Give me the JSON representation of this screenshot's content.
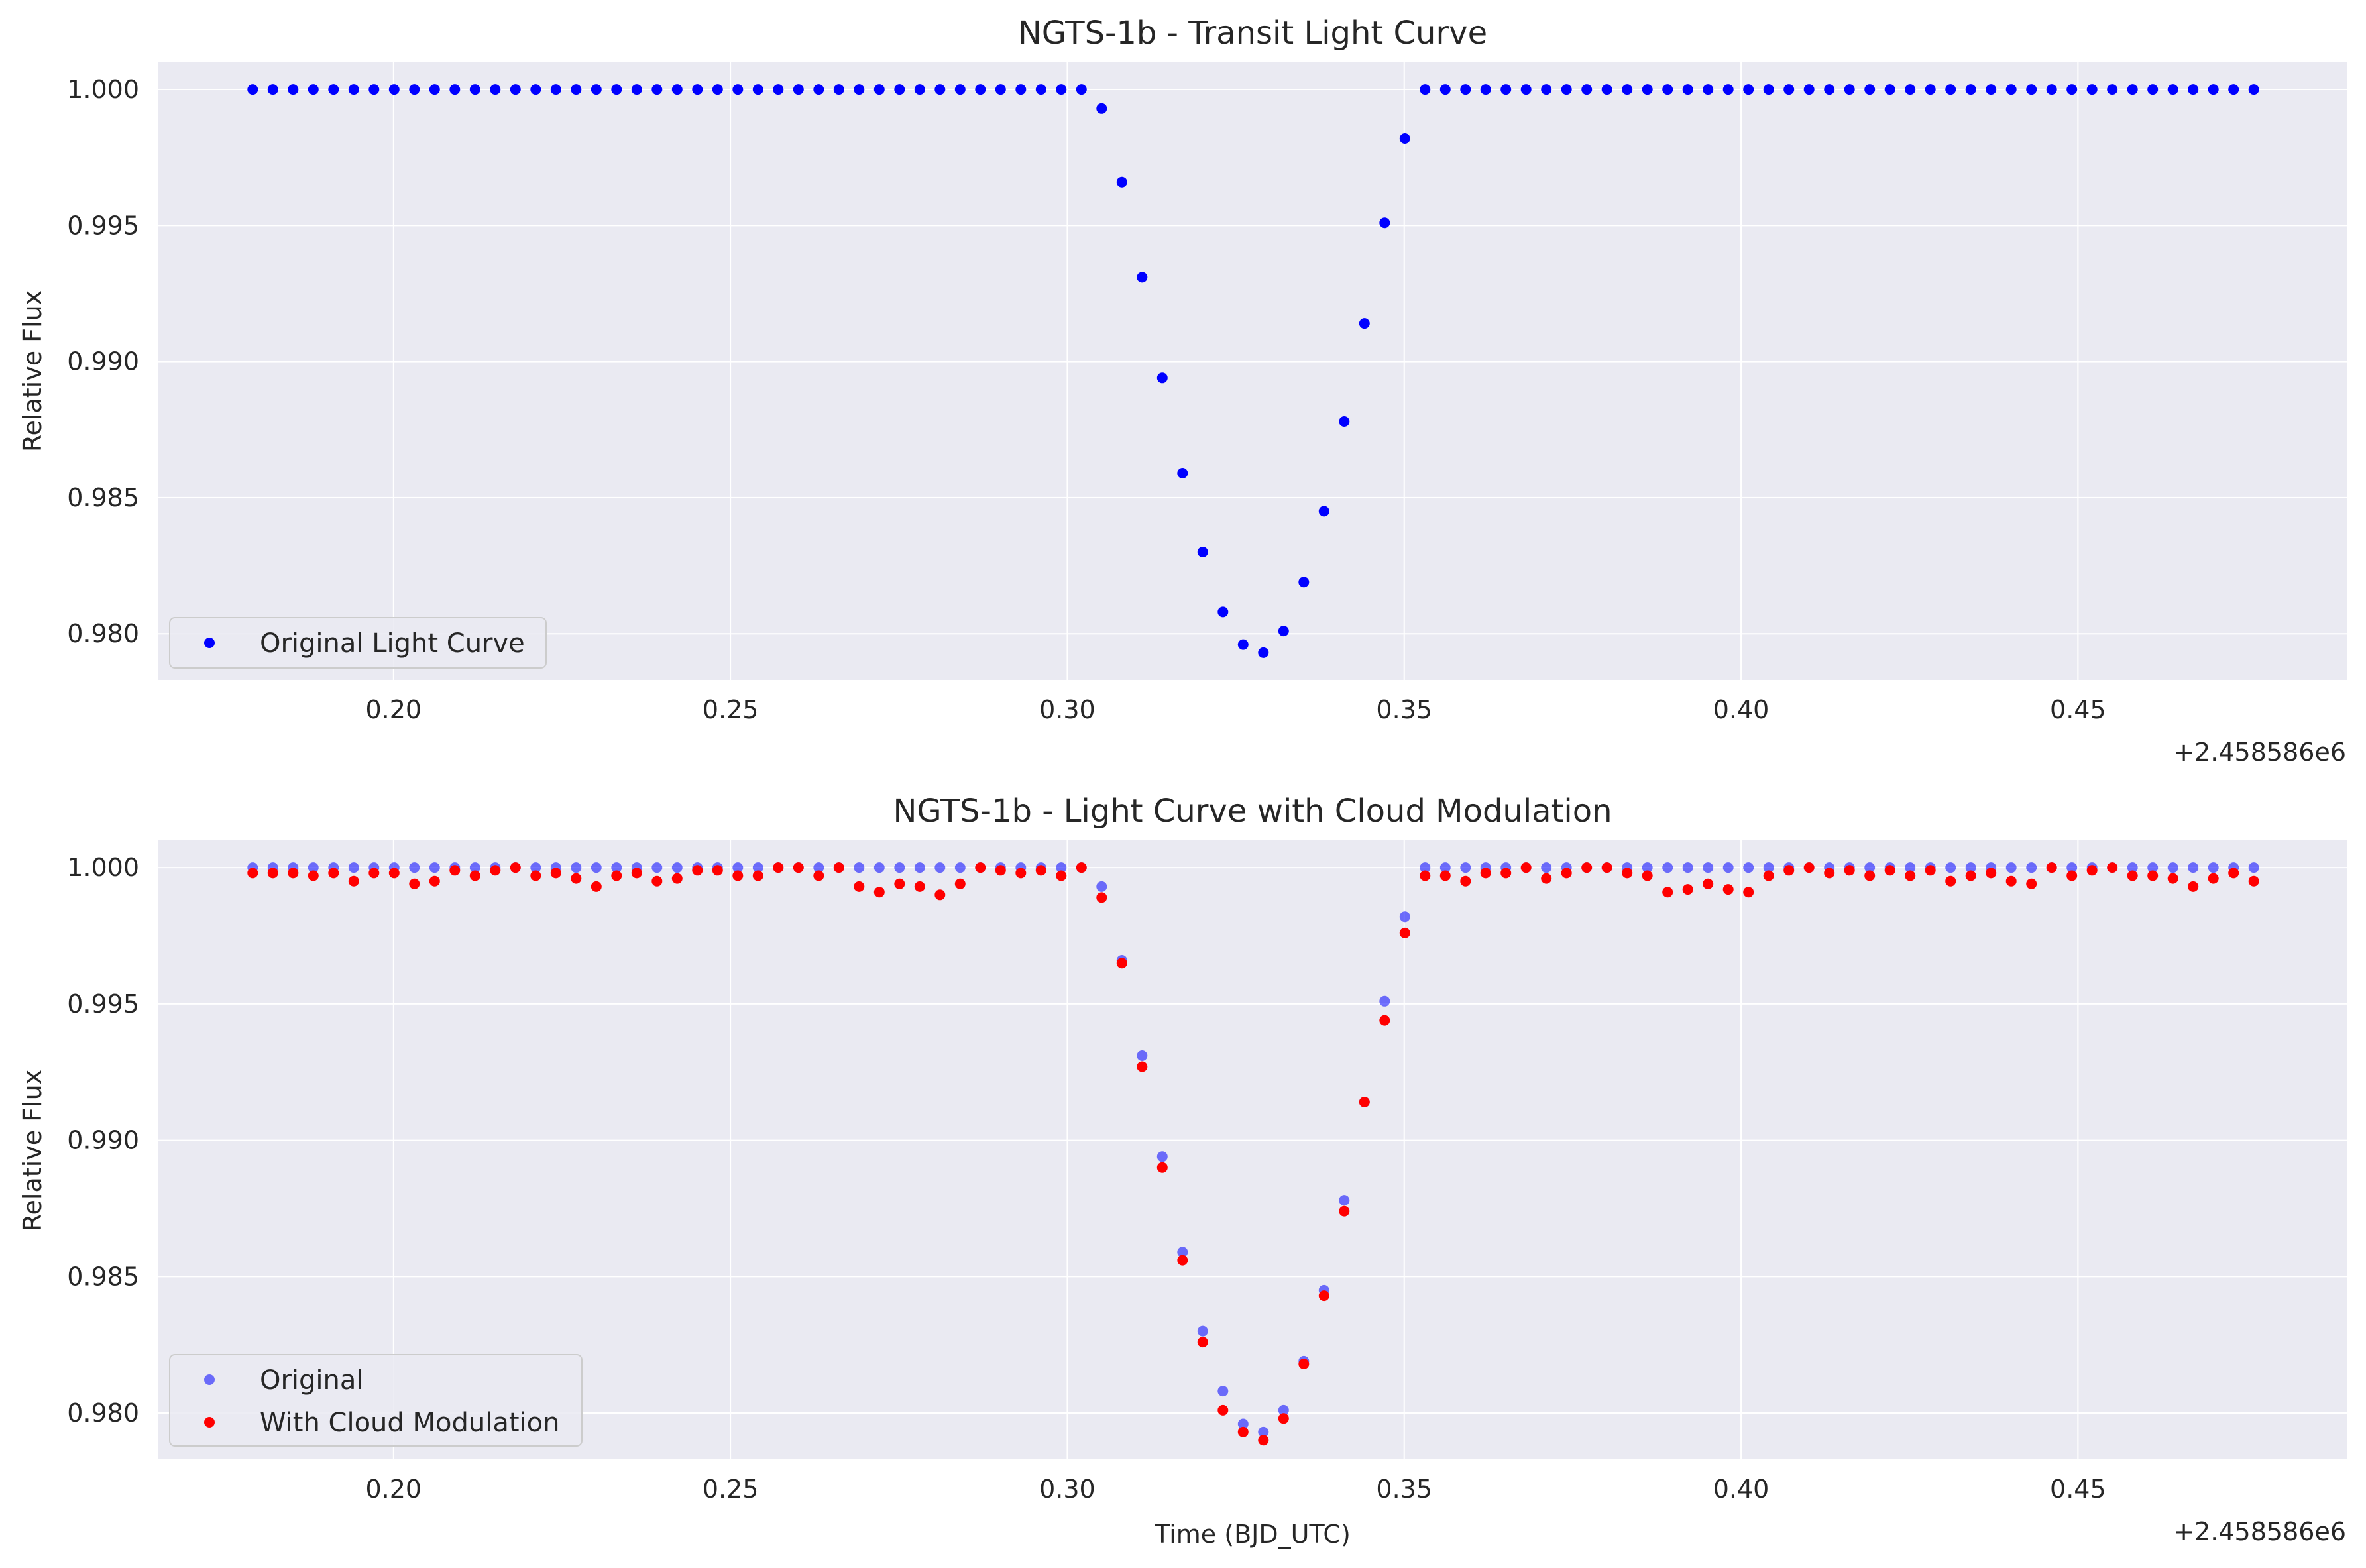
{
  "chart_data": [
    {
      "type": "scatter",
      "title": "NGTS-1b - Transit Light Curve",
      "xlabel": "",
      "ylabel": "Relative Flux",
      "x_offset_label": "+2.458586e6",
      "xlim": [
        0.165,
        0.49
      ],
      "ylim": [
        0.9783,
        1.001
      ],
      "xticks": [
        0.2,
        0.25,
        0.3,
        0.35,
        0.4,
        0.45
      ],
      "xtick_labels": [
        "0.20",
        "0.25",
        "0.30",
        "0.35",
        "0.40",
        "0.45"
      ],
      "yticks": [
        0.98,
        0.985,
        0.99,
        0.995,
        1.0
      ],
      "ytick_labels": [
        "0.980",
        "0.985",
        "0.990",
        "0.995",
        "1.000"
      ],
      "grid": true,
      "legend": "lower-left",
      "series": [
        {
          "name": "Original Light Curve",
          "color": "#0000ff",
          "opacity": 1.0,
          "x": [
            0.1791,
            0.1821,
            0.1851,
            0.1881,
            0.1911,
            0.1941,
            0.1971,
            0.2001,
            0.2031,
            0.2061,
            0.2091,
            0.2121,
            0.2151,
            0.2181,
            0.2211,
            0.2241,
            0.2271,
            0.2301,
            0.2331,
            0.2361,
            0.2391,
            0.2421,
            0.2451,
            0.2481,
            0.2511,
            0.2541,
            0.2571,
            0.2601,
            0.2631,
            0.2661,
            0.2691,
            0.2721,
            0.2751,
            0.2781,
            0.2811,
            0.2841,
            0.2871,
            0.2901,
            0.2931,
            0.2961,
            0.2991,
            0.3021,
            0.3051,
            0.3081,
            0.3111,
            0.3141,
            0.3171,
            0.3201,
            0.3231,
            0.3261,
            0.3291,
            0.3321,
            0.3351,
            0.3381,
            0.3411,
            0.3441,
            0.3471,
            0.3501,
            0.3531,
            0.3561,
            0.3591,
            0.3621,
            0.3651,
            0.3681,
            0.3711,
            0.3741,
            0.3771,
            0.3801,
            0.3831,
            0.3861,
            0.3891,
            0.3921,
            0.3951,
            0.3981,
            0.4011,
            0.4041,
            0.4071,
            0.4101,
            0.4131,
            0.4161,
            0.4191,
            0.4221,
            0.4251,
            0.4281,
            0.4311,
            0.4341,
            0.4371,
            0.4401,
            0.4431,
            0.4461,
            0.4491,
            0.4521,
            0.4551,
            0.4581,
            0.4611,
            0.4641,
            0.4671,
            0.4701,
            0.4731,
            0.4761
          ],
          "y": [
            1.0,
            1.0,
            1.0,
            1.0,
            1.0,
            1.0,
            1.0,
            1.0,
            1.0,
            1.0,
            1.0,
            1.0,
            1.0,
            1.0,
            1.0,
            1.0,
            1.0,
            1.0,
            1.0,
            1.0,
            1.0,
            1.0,
            1.0,
            1.0,
            1.0,
            1.0,
            1.0,
            1.0,
            1.0,
            1.0,
            1.0,
            1.0,
            1.0,
            1.0,
            1.0,
            1.0,
            1.0,
            1.0,
            1.0,
            1.0,
            1.0,
            1.0,
            0.9993,
            0.9966,
            0.9931,
            0.9894,
            0.9859,
            0.983,
            0.9808,
            0.9796,
            0.9793,
            0.9801,
            0.9819,
            0.9845,
            0.9878,
            0.9914,
            0.9951,
            0.9982,
            1.0,
            1.0,
            1.0,
            1.0,
            1.0,
            1.0,
            1.0,
            1.0,
            1.0,
            1.0,
            1.0,
            1.0,
            1.0,
            1.0,
            1.0,
            1.0,
            1.0,
            1.0,
            1.0,
            1.0,
            1.0,
            1.0,
            1.0,
            1.0,
            1.0,
            1.0,
            1.0,
            1.0,
            1.0,
            1.0,
            1.0,
            1.0,
            1.0,
            1.0,
            1.0,
            1.0,
            1.0,
            1.0,
            1.0,
            1.0,
            1.0,
            1.0
          ]
        }
      ]
    },
    {
      "type": "scatter",
      "title": "NGTS-1b - Light Curve with Cloud Modulation",
      "xlabel": "Time (BJD_UTC)",
      "ylabel": "Relative Flux",
      "x_offset_label": "+2.458586e6",
      "xlim": [
        0.165,
        0.49
      ],
      "ylim": [
        0.9783,
        1.001
      ],
      "xticks": [
        0.2,
        0.25,
        0.3,
        0.35,
        0.4,
        0.45
      ],
      "xtick_labels": [
        "0.20",
        "0.25",
        "0.30",
        "0.35",
        "0.40",
        "0.45"
      ],
      "yticks": [
        0.98,
        0.985,
        0.99,
        0.995,
        1.0
      ],
      "ytick_labels": [
        "0.980",
        "0.985",
        "0.990",
        "0.995",
        "1.000"
      ],
      "grid": true,
      "legend": "lower-left",
      "series": [
        {
          "name": "Original",
          "color": "#0000ff",
          "opacity": 0.55,
          "x": [
            0.1791,
            0.1821,
            0.1851,
            0.1881,
            0.1911,
            0.1941,
            0.1971,
            0.2001,
            0.2031,
            0.2061,
            0.2091,
            0.2121,
            0.2151,
            0.2181,
            0.2211,
            0.2241,
            0.2271,
            0.2301,
            0.2331,
            0.2361,
            0.2391,
            0.2421,
            0.2451,
            0.2481,
            0.2511,
            0.2541,
            0.2571,
            0.2601,
            0.2631,
            0.2661,
            0.2691,
            0.2721,
            0.2751,
            0.2781,
            0.2811,
            0.2841,
            0.2871,
            0.2901,
            0.2931,
            0.2961,
            0.2991,
            0.3021,
            0.3051,
            0.3081,
            0.3111,
            0.3141,
            0.3171,
            0.3201,
            0.3231,
            0.3261,
            0.3291,
            0.3321,
            0.3351,
            0.3381,
            0.3411,
            0.3441,
            0.3471,
            0.3501,
            0.3531,
            0.3561,
            0.3591,
            0.3621,
            0.3651,
            0.3681,
            0.3711,
            0.3741,
            0.3771,
            0.3801,
            0.3831,
            0.3861,
            0.3891,
            0.3921,
            0.3951,
            0.3981,
            0.4011,
            0.4041,
            0.4071,
            0.4101,
            0.4131,
            0.4161,
            0.4191,
            0.4221,
            0.4251,
            0.4281,
            0.4311,
            0.4341,
            0.4371,
            0.4401,
            0.4431,
            0.4461,
            0.4491,
            0.4521,
            0.4551,
            0.4581,
            0.4611,
            0.4641,
            0.4671,
            0.4701,
            0.4731,
            0.4761
          ],
          "y": [
            1.0,
            1.0,
            1.0,
            1.0,
            1.0,
            1.0,
            1.0,
            1.0,
            1.0,
            1.0,
            1.0,
            1.0,
            1.0,
            1.0,
            1.0,
            1.0,
            1.0,
            1.0,
            1.0,
            1.0,
            1.0,
            1.0,
            1.0,
            1.0,
            1.0,
            1.0,
            1.0,
            1.0,
            1.0,
            1.0,
            1.0,
            1.0,
            1.0,
            1.0,
            1.0,
            1.0,
            1.0,
            1.0,
            1.0,
            1.0,
            1.0,
            1.0,
            0.9993,
            0.9966,
            0.9931,
            0.9894,
            0.9859,
            0.983,
            0.9808,
            0.9796,
            0.9793,
            0.9801,
            0.9819,
            0.9845,
            0.9878,
            0.9914,
            0.9951,
            0.9982,
            1.0,
            1.0,
            1.0,
            1.0,
            1.0,
            1.0,
            1.0,
            1.0,
            1.0,
            1.0,
            1.0,
            1.0,
            1.0,
            1.0,
            1.0,
            1.0,
            1.0,
            1.0,
            1.0,
            1.0,
            1.0,
            1.0,
            1.0,
            1.0,
            1.0,
            1.0,
            1.0,
            1.0,
            1.0,
            1.0,
            1.0,
            1.0,
            1.0,
            1.0,
            1.0,
            1.0,
            1.0,
            1.0,
            1.0,
            1.0,
            1.0,
            1.0
          ]
        },
        {
          "name": "With Cloud Modulation",
          "color": "#ff0000",
          "opacity": 1.0,
          "x": [
            0.1791,
            0.1821,
            0.1851,
            0.1881,
            0.1911,
            0.1941,
            0.1971,
            0.2001,
            0.2031,
            0.2061,
            0.2091,
            0.2121,
            0.2151,
            0.2181,
            0.2211,
            0.2241,
            0.2271,
            0.2301,
            0.2331,
            0.2361,
            0.2391,
            0.2421,
            0.2451,
            0.2481,
            0.2511,
            0.2541,
            0.2571,
            0.2601,
            0.2631,
            0.2661,
            0.2691,
            0.2721,
            0.2751,
            0.2781,
            0.2811,
            0.2841,
            0.2871,
            0.2901,
            0.2931,
            0.2961,
            0.2991,
            0.3021,
            0.3051,
            0.3081,
            0.3111,
            0.3141,
            0.3171,
            0.3201,
            0.3231,
            0.3261,
            0.3291,
            0.3321,
            0.3351,
            0.3381,
            0.3411,
            0.3441,
            0.3471,
            0.3501,
            0.3531,
            0.3561,
            0.3591,
            0.3621,
            0.3651,
            0.3681,
            0.3711,
            0.3741,
            0.3771,
            0.3801,
            0.3831,
            0.3861,
            0.3891,
            0.3921,
            0.3951,
            0.3981,
            0.4011,
            0.4041,
            0.4071,
            0.4101,
            0.4131,
            0.4161,
            0.4191,
            0.4221,
            0.4251,
            0.4281,
            0.4311,
            0.4341,
            0.4371,
            0.4401,
            0.4431,
            0.4461,
            0.4491,
            0.4521,
            0.4551,
            0.4581,
            0.4611,
            0.4641,
            0.4671,
            0.4701,
            0.4731,
            0.4761
          ],
          "y": [
            0.9998,
            0.9998,
            0.9998,
            0.9997,
            0.9998,
            0.9995,
            0.9998,
            0.9998,
            0.9994,
            0.9995,
            0.9999,
            0.9997,
            0.9999,
            1.0,
            0.9997,
            0.9998,
            0.9996,
            0.9993,
            0.9997,
            0.9998,
            0.9995,
            0.9996,
            0.9999,
            0.9999,
            0.9997,
            0.9997,
            1.0,
            1.0,
            0.9997,
            1.0,
            0.9993,
            0.9991,
            0.9994,
            0.9993,
            0.999,
            0.9994,
            1.0,
            0.9999,
            0.9998,
            0.9999,
            0.9997,
            1.0,
            0.9989,
            0.9965,
            0.9927,
            0.989,
            0.9856,
            0.9826,
            0.9801,
            0.9793,
            0.979,
            0.9798,
            0.9818,
            0.9843,
            0.9874,
            0.9914,
            0.9944,
            0.9976,
            0.9997,
            0.9997,
            0.9995,
            0.9998,
            0.9998,
            1.0,
            0.9996,
            0.9998,
            1.0,
            1.0,
            0.9998,
            0.9997,
            0.9991,
            0.9992,
            0.9994,
            0.9992,
            0.9991,
            0.9997,
            0.9999,
            1.0,
            0.9998,
            0.9999,
            0.9997,
            0.9999,
            0.9997,
            0.9999,
            0.9995,
            0.9997,
            0.9998,
            0.9995,
            0.9994,
            1.0,
            0.9997,
            0.9999,
            1.0,
            0.9997,
            0.9997,
            0.9996,
            0.9993,
            0.9996,
            0.9998,
            0.9995
          ]
        }
      ]
    }
  ]
}
